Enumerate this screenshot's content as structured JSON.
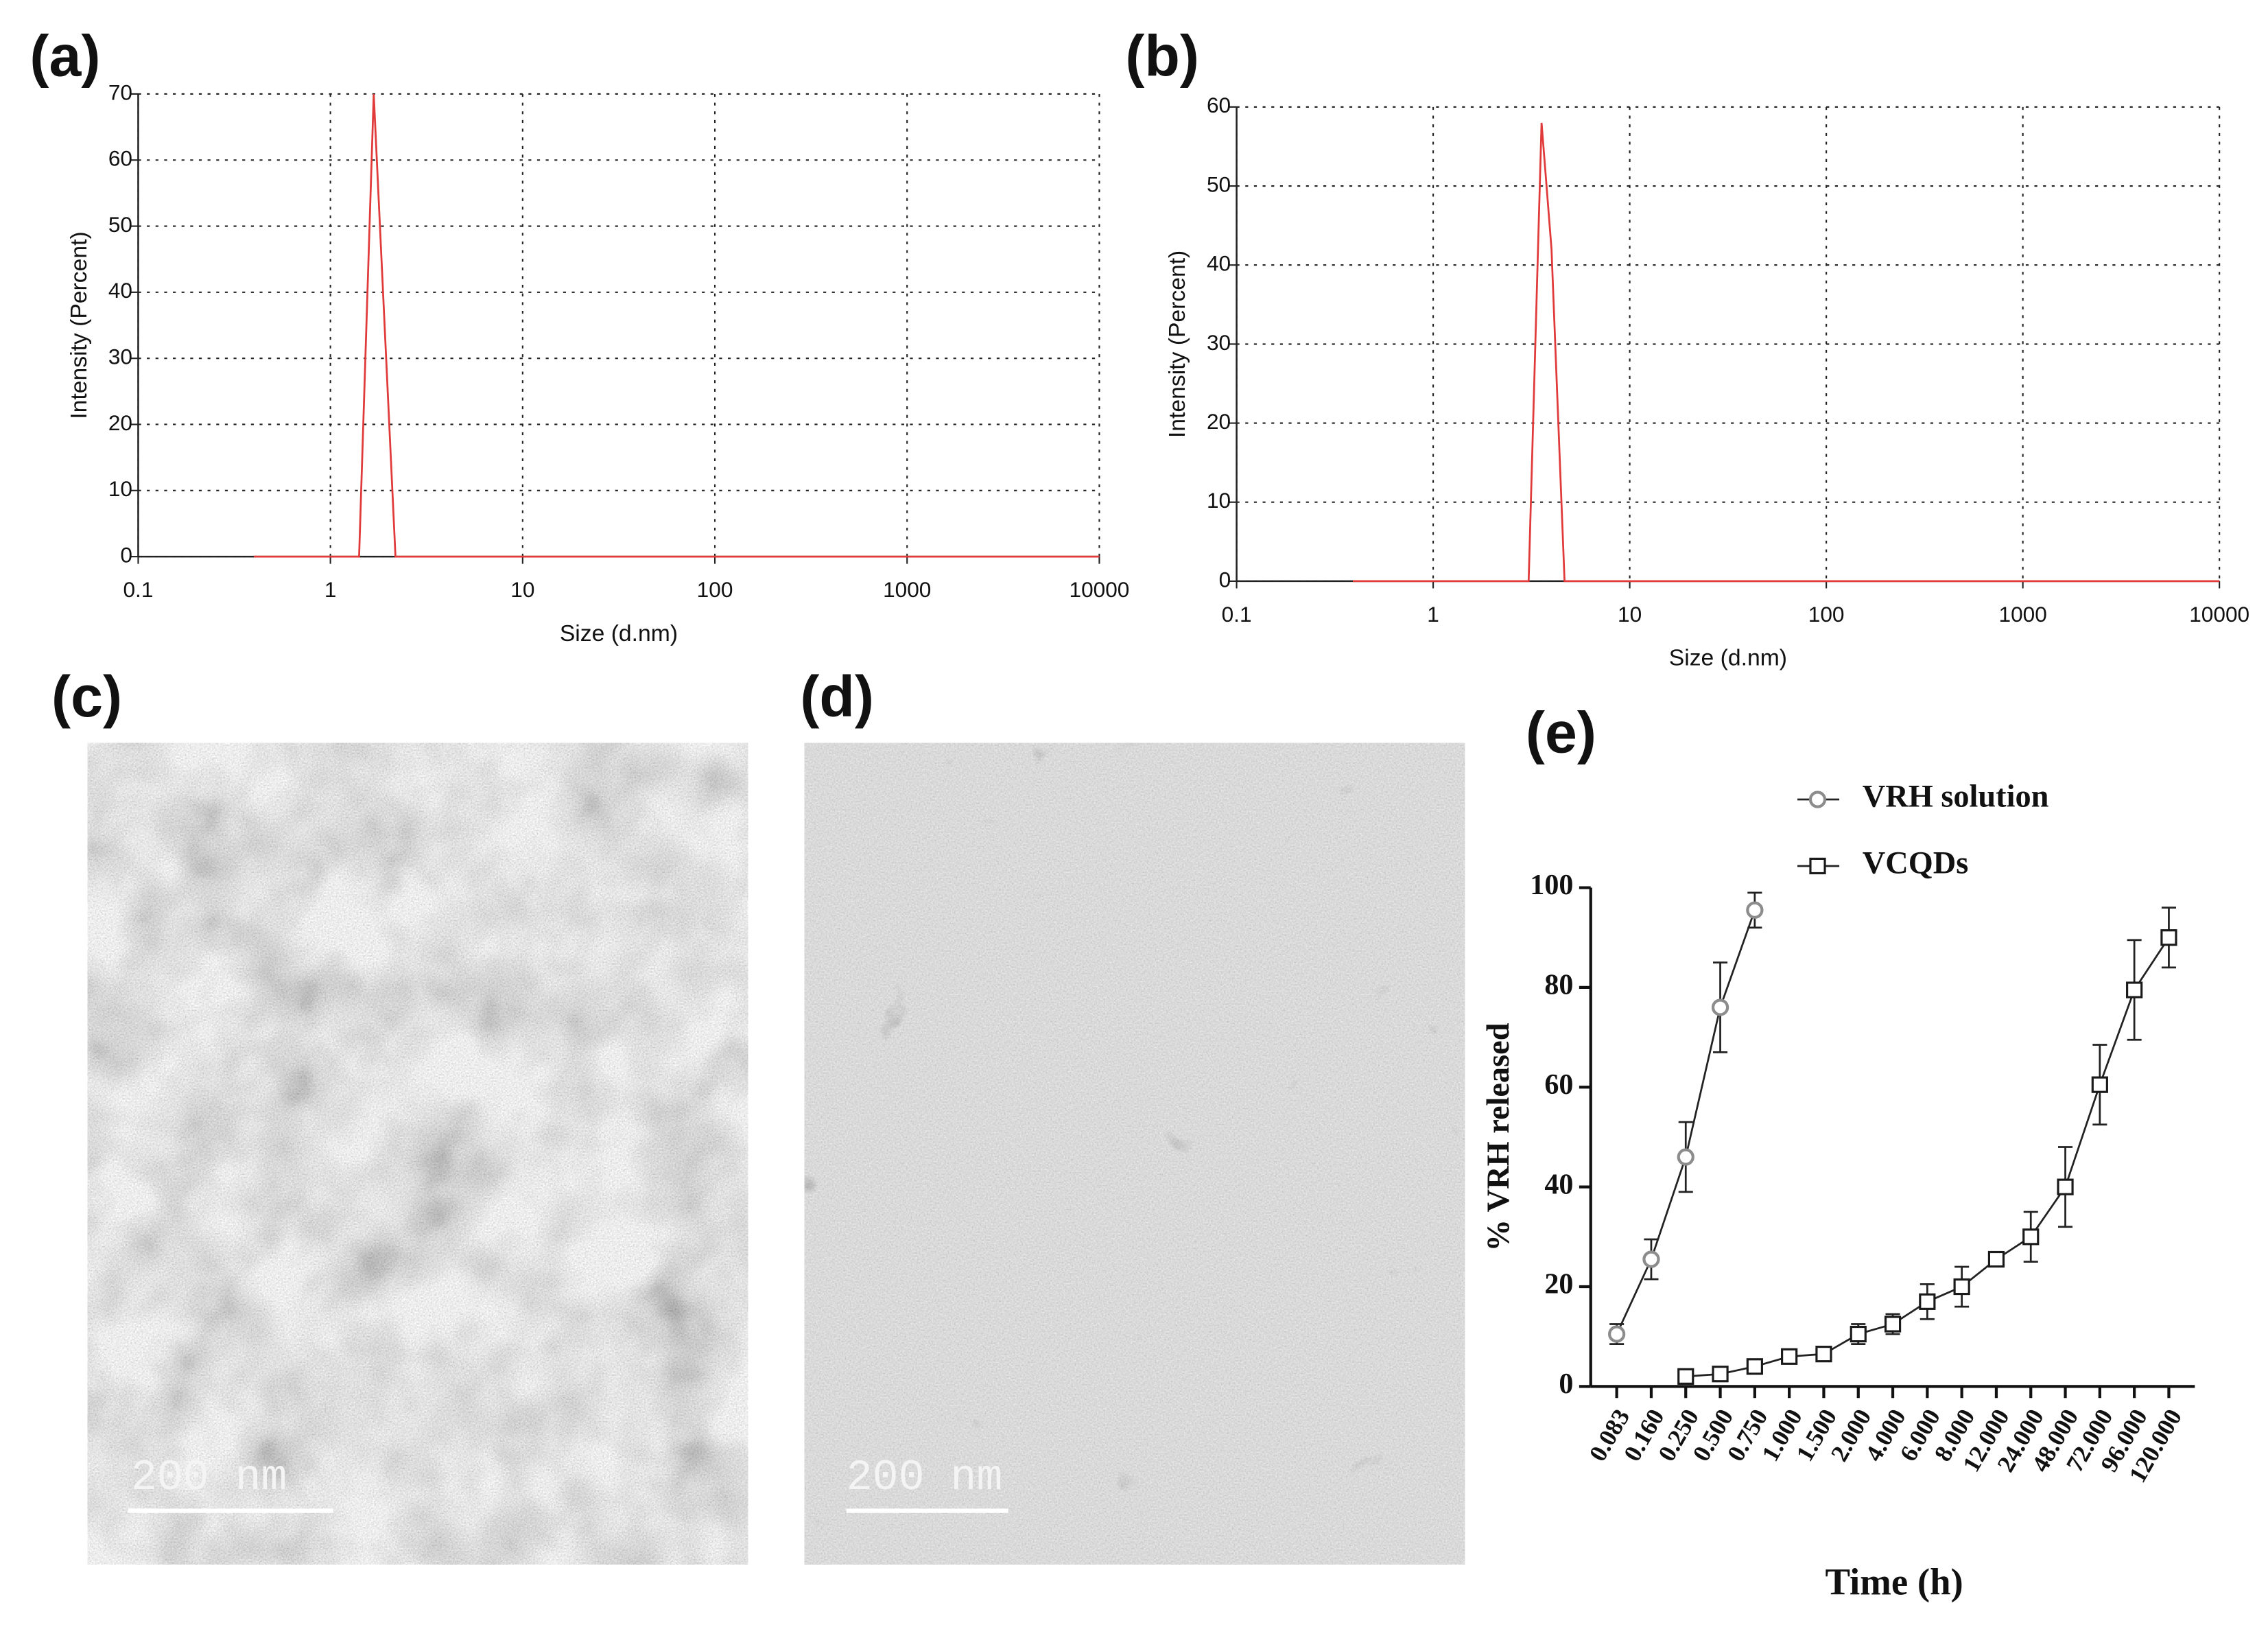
{
  "chart_data": [
    {
      "type": "line",
      "panel": "(a)",
      "xlabel": "Size (d.nm)",
      "ylabel": "Intensity (Percent)",
      "xscale": "log",
      "xlim": [
        0.1,
        10000
      ],
      "xticks": [
        0.1,
        1,
        10,
        100,
        1000,
        10000
      ],
      "ylim": [
        0,
        70
      ],
      "yticks": [
        0,
        10,
        20,
        30,
        40,
        50,
        60,
        70
      ],
      "grid": true,
      "x": [
        0.4,
        1.41,
        1.68,
        2.18,
        10000
      ],
      "series": [
        {
          "color": "#e03a3a",
          "values": [
            0,
            0,
            70,
            0,
            0
          ]
        }
      ]
    },
    {
      "type": "line",
      "panel": "(b)",
      "xlabel": "Size (d.nm)",
      "ylabel": "Intensity (Percent)",
      "xscale": "log",
      "xlim": [
        0.1,
        10000
      ],
      "xticks": [
        0.1,
        1,
        10,
        100,
        1000,
        10000
      ],
      "ylim": [
        0,
        60
      ],
      "yticks": [
        0,
        10,
        20,
        30,
        40,
        50,
        60
      ],
      "grid": true,
      "x": [
        0.39,
        3.06,
        3.56,
        4.0,
        4.66,
        10000
      ],
      "series": [
        {
          "color": "#e03a3a",
          "values": [
            0,
            0,
            58,
            42,
            0,
            0
          ]
        }
      ]
    },
    {
      "type": "errorline",
      "panel": "(e)",
      "xlabel": "Time (h)",
      "ylabel": "% VRH released",
      "categories": [
        "0.083",
        "0.160",
        "0.250",
        "0.500",
        "0.750",
        "1.000",
        "1.500",
        "2.000",
        "4.000",
        "6.000",
        "8.000",
        "12.000",
        "24.000",
        "48.000",
        "72.000",
        "96.000",
        "120.000"
      ],
      "ylim": [
        0,
        100
      ],
      "yticks": [
        0,
        20,
        40,
        60,
        80,
        100
      ],
      "legend": "top-left",
      "series": [
        {
          "name": "VRH solution",
          "color": "#8c8c8c",
          "marker": "circle",
          "values": [
            10.5,
            25.5,
            46,
            76,
            95.5,
            null,
            null,
            null,
            null,
            null,
            null,
            null,
            null,
            null,
            null,
            null,
            null
          ],
          "errors": [
            2,
            4,
            7,
            9,
            3.5,
            null,
            null,
            null,
            null,
            null,
            null,
            null,
            null,
            null,
            null,
            null,
            null
          ]
        },
        {
          "name": "VCQDs",
          "color": "#1a1a1a",
          "marker": "square",
          "values": [
            null,
            null,
            2,
            2.5,
            4,
            6,
            6.5,
            10.5,
            12.5,
            17,
            20,
            25.5,
            30,
            40,
            60.5,
            79.5,
            90
          ],
          "errors": [
            null,
            null,
            0.5,
            1,
            1,
            1,
            1,
            2,
            2,
            3.5,
            4,
            1,
            5,
            8,
            8,
            10,
            6
          ]
        }
      ]
    }
  ],
  "images": [
    {
      "panel": "(c)",
      "scale_bar": "200 nm"
    },
    {
      "panel": "(d)",
      "scale_bar": "200 nm"
    }
  ]
}
